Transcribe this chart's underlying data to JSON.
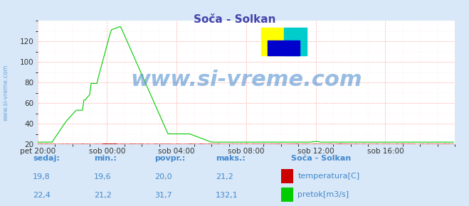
{
  "title": "Soča - Solkan",
  "bg_color": "#d8e8f8",
  "plot_bg_color": "#ffffff",
  "grid_color_major": "#ff9999",
  "grid_color_minor": "#ffdddd",
  "x_min": 0,
  "x_max": 288,
  "y_min": 20,
  "y_max": 140,
  "yticks": [
    20,
    40,
    60,
    80,
    100,
    120
  ],
  "xtick_labels": [
    "pet 20:00",
    "sob 00:00",
    "sob 04:00",
    "sob 08:00",
    "sob 12:00",
    "sob 16:00"
  ],
  "xtick_positions": [
    0,
    48,
    96,
    144,
    192,
    240
  ],
  "temp_color": "#cc0000",
  "flow_color": "#00cc00",
  "watermark_text": "www.si-vreme.com",
  "watermark_color": "#4488cc",
  "sidebar_text": "www.si-vreme.com",
  "sidebar_color": "#4488cc",
  "legend_title": "Soča - Solkan",
  "legend_items": [
    "temperatura[C]",
    "pretok[m3/s]"
  ],
  "legend_colors": [
    "#cc0000",
    "#00cc00"
  ],
  "stats_headers": [
    "sedaj:",
    "min.:",
    "povpr.:",
    "maks.:"
  ],
  "stats_temp": [
    "19,8",
    "19,6",
    "20,0",
    "21,2"
  ],
  "stats_flow": [
    "22,4",
    "21,2",
    "31,7",
    "132,1"
  ],
  "stats_color": "#4488cc",
  "title_color": "#4444aa",
  "logo_yellow": "#ffff00",
  "logo_blue": "#0000cc",
  "logo_cyan": "#00cccc"
}
